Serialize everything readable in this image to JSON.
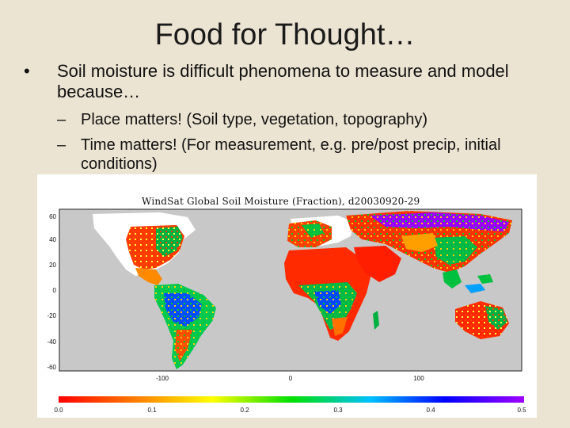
{
  "slide": {
    "title": "Food for Thought…",
    "bullet_marker": "•",
    "bullet": "Soil moisture is difficult phenomena to measure and model because…",
    "sub_marker": "–",
    "subbullets": [
      "Place matters! (Soil type, vegetation, topography)",
      "Time matters! (For measurement, e.g. pre/post precip, initial conditions)"
    ]
  },
  "figure": {
    "title": "WindSat Global Soil Moisture (Fraction), d20030920-29",
    "y_ticks": [
      "60",
      "40",
      "20",
      "0",
      "-20",
      "-40",
      "-60"
    ],
    "x_ticks": [
      "-100",
      "0",
      "100"
    ],
    "colorbar_ticks": [
      "0.0",
      "0.1",
      "0.2",
      "0.3",
      "0.4",
      "0.5"
    ],
    "colorbar_colors": [
      "#ff0000",
      "#ff8000",
      "#ffff00",
      "#00e000",
      "#00c0ff",
      "#0000ff",
      "#a000ff"
    ],
    "ocean_color": "#c8c8c8",
    "no_data_color": "#ffffff"
  }
}
